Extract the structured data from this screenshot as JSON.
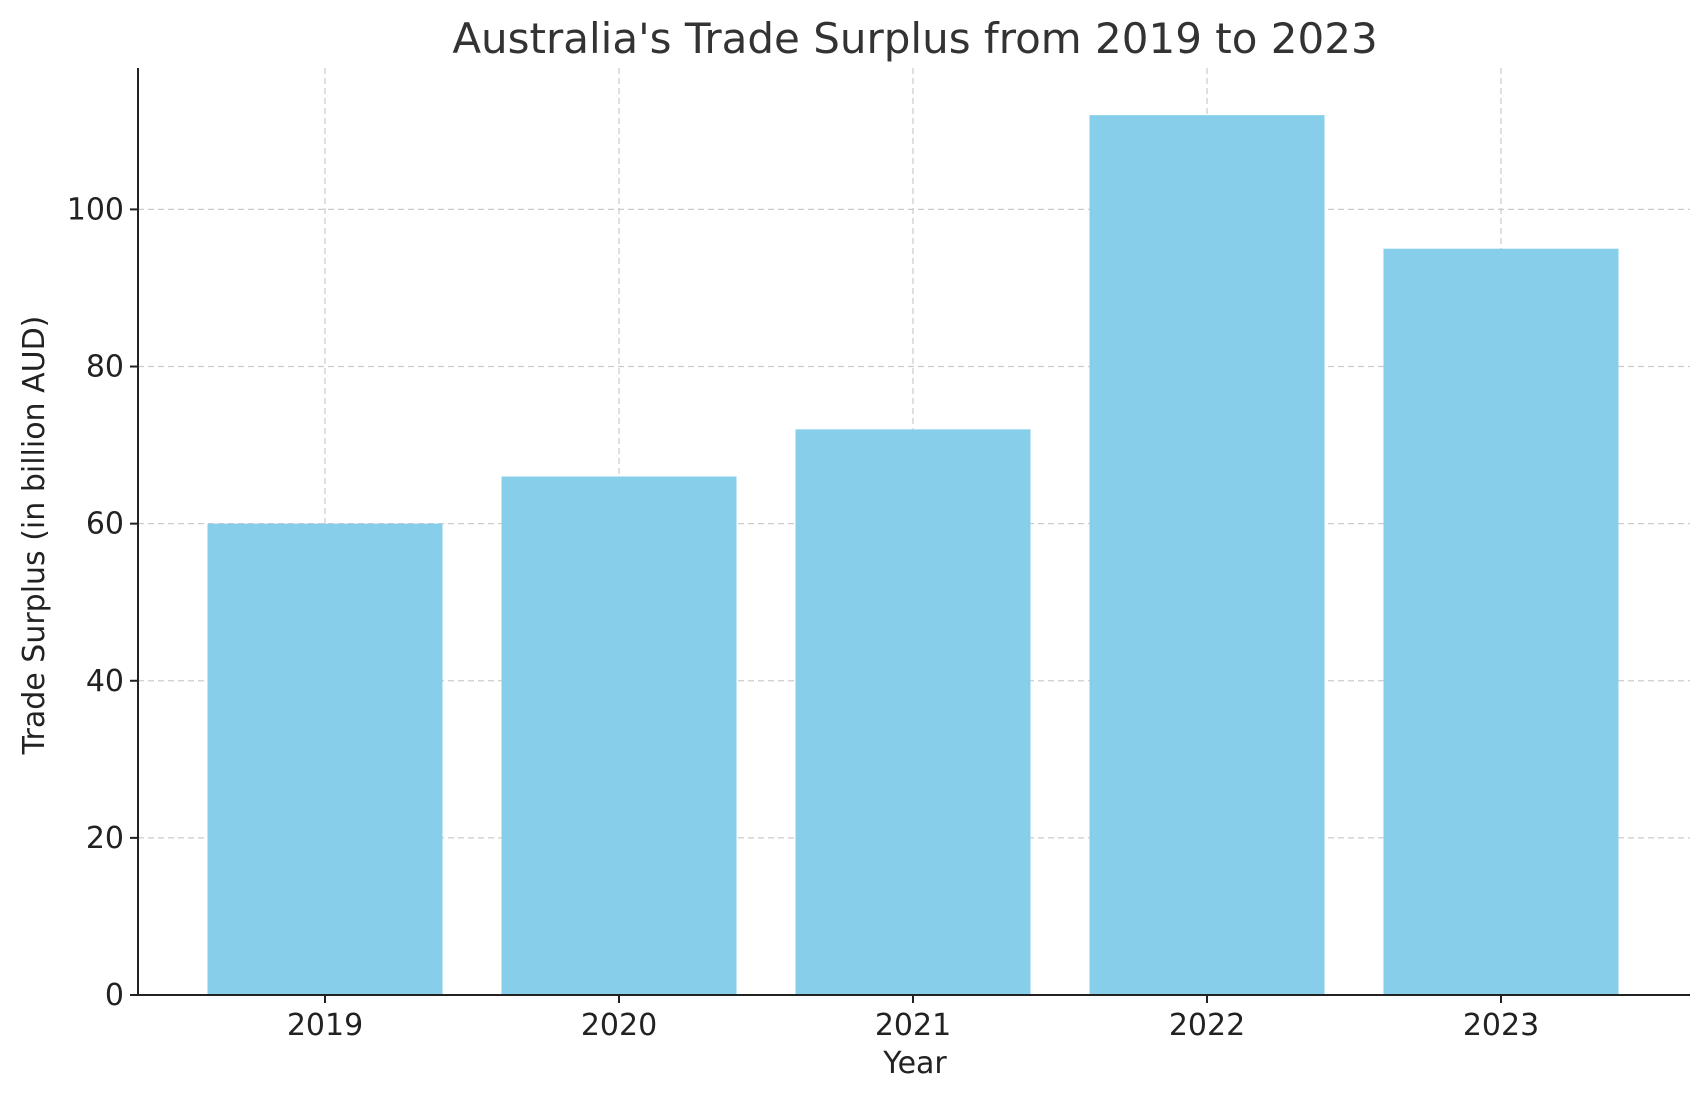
{
  "chart_data": {
    "type": "bar",
    "title": "Australia's Trade Surplus from 2019 to 2023",
    "xlabel": "Year",
    "ylabel": "Trade Surplus (in billion AUD)",
    "categories": [
      "2019",
      "2020",
      "2021",
      "2022",
      "2023"
    ],
    "values": [
      60,
      66,
      72,
      112,
      95
    ],
    "ylim": [
      0,
      118
    ],
    "yticks": [
      0,
      20,
      40,
      60,
      80,
      100
    ],
    "grid": true,
    "bar_color": "#87CEEB",
    "legend": "none"
  }
}
